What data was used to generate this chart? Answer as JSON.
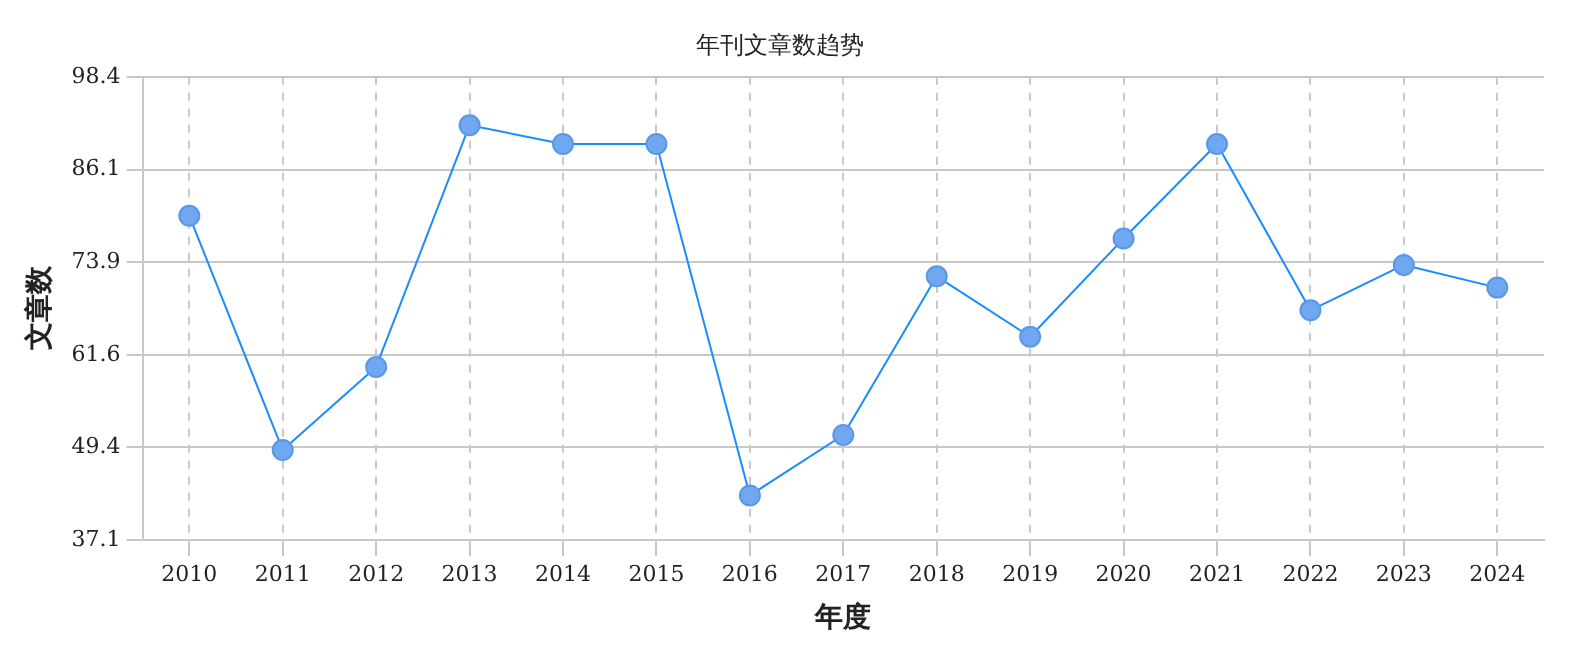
{
  "chart_data": {
    "type": "line",
    "title": "年刊文章数趋势",
    "xlabel": "年度",
    "ylabel": "文章数",
    "categories": [
      "2010",
      "2011",
      "2012",
      "2013",
      "2014",
      "2015",
      "2016",
      "2017",
      "2018",
      "2019",
      "2020",
      "2021",
      "2022",
      "2023",
      "2024"
    ],
    "series": [
      {
        "color": "#1a8cff",
        "values": [
          80,
          49,
          60,
          92,
          89.5,
          89.5,
          43,
          51,
          72,
          64,
          77,
          89.5,
          67.5,
          73.5,
          70.5
        ]
      }
    ],
    "ylim": [
      37.1,
      98.4
    ],
    "yticks": [
      37.1,
      49.4,
      61.6,
      73.9,
      86.1,
      98.4
    ],
    "grid": true,
    "legend": false,
    "marker": "circle",
    "line_style": "solid"
  }
}
